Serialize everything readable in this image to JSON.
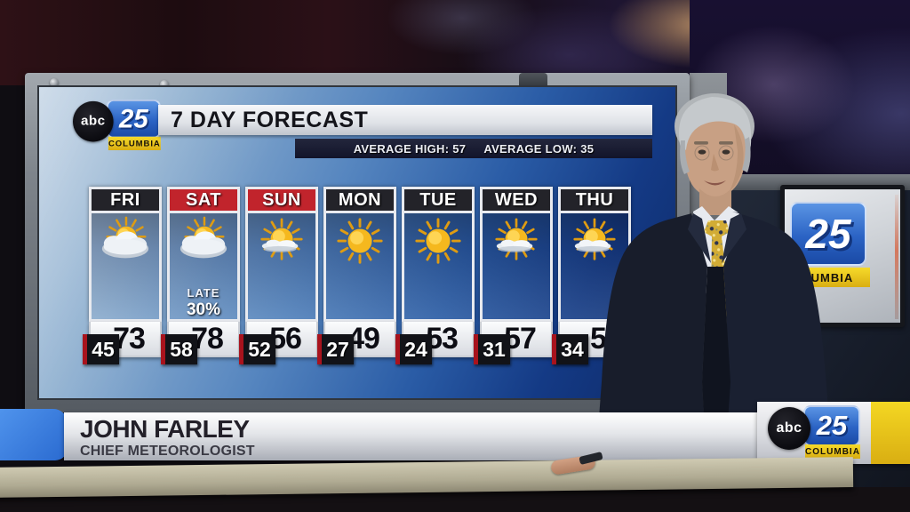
{
  "station": {
    "brand_abc": "abc",
    "brand_number": "25",
    "brand_city": "COLUMBIA"
  },
  "board": {
    "title": "7 DAY FORECAST",
    "average_high": "AVERAGE HIGH: 57",
    "average_low": "AVERAGE LOW: 35",
    "days": [
      {
        "name": "FRI",
        "header_color": "#232329",
        "icon": "mostly-cloudy",
        "note1": "",
        "note2": "",
        "high": "73",
        "low": "45"
      },
      {
        "name": "SAT",
        "header_color": "#c1242c",
        "icon": "mostly-cloudy",
        "note1": "LATE",
        "note2": "30%",
        "high": "78",
        "low": "58"
      },
      {
        "name": "SUN",
        "header_color": "#c1242c",
        "icon": "partly-cloudy",
        "note1": "",
        "note2": "",
        "high": "56",
        "low": "52"
      },
      {
        "name": "MON",
        "header_color": "#232329",
        "icon": "sunny",
        "note1": "",
        "note2": "",
        "high": "49",
        "low": "27"
      },
      {
        "name": "TUE",
        "header_color": "#232329",
        "icon": "sunny",
        "note1": "",
        "note2": "",
        "high": "53",
        "low": "24"
      },
      {
        "name": "WED",
        "header_color": "#232329",
        "icon": "partly-cloudy",
        "note1": "",
        "note2": "",
        "high": "57",
        "low": "31"
      },
      {
        "name": "THU",
        "header_color": "#232329",
        "icon": "partly-cloudy",
        "note1": "",
        "note2": "",
        "high": "5",
        "low": "34"
      }
    ]
  },
  "lower_third": {
    "name": "JOHN FARLEY",
    "title": "CHIEF METEOROLOGIST"
  },
  "side_monitor": {
    "number": "25",
    "city": "LUMBIA"
  }
}
